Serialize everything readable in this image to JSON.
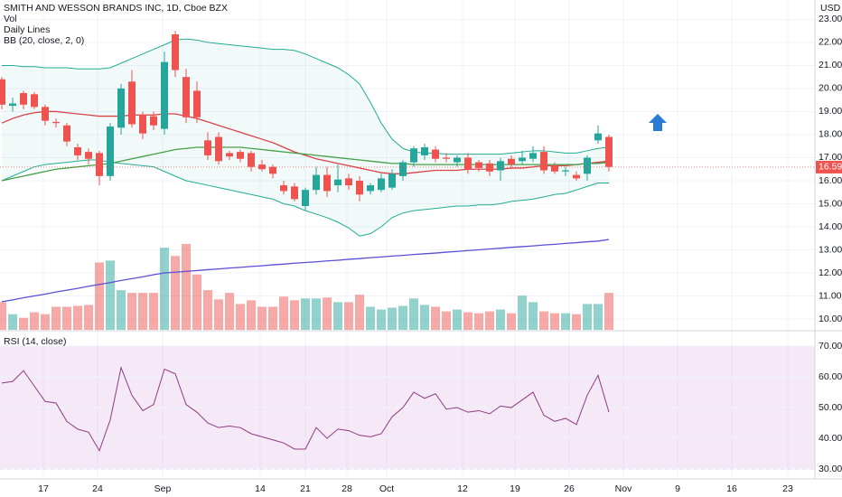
{
  "chart_data": {
    "type": "candlestick",
    "title": "SMITH AND WESSON BRANDS INC, 1D, Cboe BZX",
    "legend": [
      "Vol",
      "Daily Lines",
      "BB (20, close, 2, 0)"
    ],
    "currency": "USD",
    "up_color": "#26a69a",
    "down_color": "#ef5350",
    "open": [
      20.4,
      19.25,
      19.8,
      19.75,
      19.2,
      18.55,
      18.4,
      17.45,
      17.25,
      17.2,
      16.2,
      18.3,
      20.3,
      18.85,
      18.8,
      18.25,
      22.35,
      20.5,
      19.9,
      17.75,
      17.9,
      17.2,
      17.25,
      17.2,
      16.7,
      16.6,
      15.8,
      15.75,
      14.9,
      15.6,
      16.25,
      15.8,
      16.1,
      16.0,
      15.55,
      15.6,
      15.7,
      16.2,
      16.8,
      17.1,
      17.35,
      17.0,
      16.8,
      17.0,
      16.8,
      16.75,
      16.45,
      16.95,
      16.85,
      16.95,
      17.25,
      16.65,
      16.4,
      16.25,
      16.3,
      17.75,
      17.9
    ],
    "high": [
      20.5,
      19.6,
      19.9,
      19.85,
      19.3,
      18.7,
      18.5,
      17.6,
      17.4,
      17.3,
      18.5,
      20.2,
      20.8,
      19.0,
      19.0,
      21.6,
      22.5,
      20.85,
      20.3,
      18.1,
      18.1,
      17.3,
      17.35,
      17.3,
      16.9,
      16.7,
      16.0,
      15.9,
      15.7,
      16.6,
      16.6,
      16.7,
      16.3,
      16.2,
      15.9,
      16.3,
      16.5,
      16.9,
      17.5,
      17.6,
      17.5,
      17.2,
      17.1,
      17.2,
      16.9,
      16.9,
      17.0,
      17.1,
      17.3,
      17.5,
      17.5,
      16.8,
      16.6,
      16.4,
      17.1,
      18.4,
      18.0
    ],
    "low": [
      19.1,
      19.0,
      19.1,
      19.1,
      18.4,
      18.3,
      17.5,
      16.9,
      16.7,
      15.8,
      16.0,
      18.0,
      18.3,
      17.8,
      18.2,
      18.0,
      20.5,
      18.5,
      18.5,
      16.9,
      16.7,
      16.9,
      16.8,
      16.4,
      16.4,
      16.1,
      15.4,
      15.1,
      14.7,
      15.4,
      15.3,
      15.5,
      15.6,
      15.1,
      15.4,
      15.5,
      15.6,
      16.0,
      16.6,
      16.9,
      16.8,
      16.8,
      16.6,
      16.3,
      16.4,
      16.2,
      16.0,
      16.5,
      16.7,
      16.8,
      16.3,
      16.3,
      16.2,
      16.0,
      16.0,
      17.6,
      16.4
    ],
    "close": [
      19.3,
      19.35,
      19.3,
      19.2,
      18.6,
      18.5,
      17.7,
      17.1,
      16.95,
      16.2,
      18.35,
      20.0,
      18.45,
      18.05,
      18.4,
      21.15,
      20.8,
      18.75,
      18.75,
      17.1,
      16.85,
      17.05,
      16.95,
      16.6,
      16.5,
      16.3,
      15.55,
      15.2,
      15.6,
      16.25,
      15.55,
      16.05,
      15.8,
      15.4,
      15.8,
      16.1,
      16.3,
      16.8,
      17.4,
      17.45,
      16.95,
      16.95,
      17.0,
      16.5,
      16.55,
      16.4,
      16.85,
      16.7,
      17.0,
      17.2,
      16.45,
      16.4,
      16.45,
      16.1,
      17.0,
      18.05,
      16.6
    ],
    "last_price": 16.59,
    "ylim": [
      9.53,
      23.84
    ],
    "yticks": [
      {
        "value": 10,
        "label": "10.00"
      },
      {
        "value": 11,
        "label": "11.00"
      },
      {
        "value": 12,
        "label": "12.00"
      },
      {
        "value": 13,
        "label": "13.00"
      },
      {
        "value": 14,
        "label": "14.00"
      },
      {
        "value": 15,
        "label": "15.00"
      },
      {
        "value": 16,
        "label": "16.00"
      },
      {
        "value": 17,
        "label": "17.00"
      },
      {
        "value": 18,
        "label": "18.00"
      },
      {
        "value": 19,
        "label": "19.00"
      },
      {
        "value": 20,
        "label": "20.00"
      },
      {
        "value": 21,
        "label": "21.00"
      },
      {
        "value": 22,
        "label": "22.00"
      },
      {
        "value": 23,
        "label": "23.00"
      }
    ],
    "xtick_labels": [
      "17",
      "24",
      "Sep",
      "14",
      "21",
      "28",
      "Oct",
      "12",
      "19",
      "26",
      "Nov",
      "9",
      "16",
      "23"
    ],
    "bands": {
      "color": "#22ab94",
      "fill_opacity": 0.06,
      "upper": [
        21.0,
        21.0,
        20.95,
        20.95,
        20.9,
        20.9,
        20.9,
        20.85,
        20.85,
        20.85,
        20.9,
        21.1,
        21.3,
        21.5,
        21.7,
        21.9,
        22.1,
        22.15,
        22.1,
        22.0,
        21.95,
        21.9,
        21.85,
        21.8,
        21.75,
        21.7,
        21.7,
        21.65,
        21.5,
        21.3,
        21.1,
        20.9,
        20.6,
        20.2,
        19.4,
        18.5,
        17.8,
        17.4,
        17.25,
        17.2,
        17.2,
        17.15,
        17.15,
        17.15,
        17.15,
        17.15,
        17.15,
        17.2,
        17.25,
        17.3,
        17.3,
        17.25,
        17.2,
        17.2,
        17.3,
        17.4,
        17.45
      ],
      "lower": [
        16.0,
        16.2,
        16.4,
        16.6,
        16.7,
        16.75,
        16.8,
        16.85,
        16.9,
        16.9,
        16.8,
        16.75,
        16.7,
        16.65,
        16.6,
        16.4,
        16.2,
        16.0,
        15.9,
        15.8,
        15.7,
        15.6,
        15.5,
        15.4,
        15.3,
        15.2,
        15.0,
        14.9,
        14.7,
        14.55,
        14.4,
        14.2,
        13.95,
        13.6,
        13.7,
        14.0,
        14.4,
        14.6,
        14.7,
        14.75,
        14.8,
        14.85,
        14.9,
        14.9,
        14.95,
        14.95,
        15.0,
        15.1,
        15.15,
        15.2,
        15.3,
        15.4,
        15.45,
        15.6,
        15.75,
        15.9,
        15.9
      ]
    },
    "lines": [
      {
        "color": "#d9434a",
        "values": [
          18.5,
          18.7,
          18.85,
          18.95,
          19.0,
          19.0,
          18.95,
          18.9,
          18.85,
          18.8,
          18.8,
          18.8,
          18.85,
          18.85,
          18.85,
          18.9,
          18.9,
          18.8,
          18.7,
          18.55,
          18.4,
          18.25,
          18.1,
          17.95,
          17.8,
          17.65,
          17.45,
          17.25,
          17.1,
          16.95,
          16.85,
          16.75,
          16.65,
          16.55,
          16.45,
          16.35,
          16.3,
          16.3,
          16.35,
          16.4,
          16.45,
          16.45,
          16.45,
          16.5,
          16.5,
          16.5,
          16.5,
          16.55,
          16.55,
          16.6,
          16.65,
          16.65,
          16.65,
          16.7,
          16.75,
          16.8,
          16.85
        ]
      },
      {
        "color": "#43a047",
        "values": [
          16.0,
          16.1,
          16.2,
          16.3,
          16.4,
          16.5,
          16.55,
          16.6,
          16.65,
          16.7,
          16.75,
          16.85,
          16.95,
          17.05,
          17.15,
          17.25,
          17.35,
          17.4,
          17.45,
          17.45,
          17.45,
          17.45,
          17.45,
          17.4,
          17.35,
          17.3,
          17.25,
          17.2,
          17.15,
          17.1,
          17.05,
          17.0,
          16.95,
          16.9,
          16.85,
          16.8,
          16.75,
          16.75,
          16.7,
          16.7,
          16.7,
          16.7,
          16.7,
          16.7,
          16.7,
          16.7,
          16.7,
          16.7,
          16.7,
          16.7,
          16.7,
          16.7,
          16.7,
          16.7,
          16.75,
          16.75,
          16.8
        ]
      },
      {
        "color": "#5b4fd6",
        "values": [
          10.75,
          10.83,
          10.92,
          11.0,
          11.08,
          11.17,
          11.25,
          11.33,
          11.42,
          11.5,
          11.58,
          11.67,
          11.75,
          11.83,
          11.92,
          12.0,
          12.03,
          12.07,
          12.1,
          12.14,
          12.17,
          12.21,
          12.24,
          12.28,
          12.31,
          12.35,
          12.38,
          12.42,
          12.45,
          12.48,
          12.52,
          12.55,
          12.59,
          12.62,
          12.66,
          12.69,
          12.73,
          12.76,
          12.8,
          12.83,
          12.86,
          12.9,
          12.93,
          12.97,
          13.0,
          13.04,
          13.07,
          13.11,
          13.14,
          13.17,
          13.21,
          13.24,
          13.28,
          13.31,
          13.35,
          13.38,
          13.45
        ]
      }
    ],
    "volume": [
      30,
      17,
      13,
      19,
      17,
      25,
      25,
      26,
      27,
      73,
      75,
      43,
      40,
      40,
      40,
      89,
      80,
      93,
      60,
      43,
      33,
      40,
      28,
      32,
      25,
      25,
      36,
      32,
      34,
      34,
      35,
      30,
      30,
      38,
      25,
      22,
      24,
      26,
      34,
      27,
      25,
      20,
      22,
      19,
      18,
      20,
      22,
      18,
      37,
      30,
      20,
      18,
      18,
      17,
      28,
      28,
      40
    ],
    "rsi": {
      "label": "RSI (14, close)",
      "color": "#8e3a80",
      "band_color": "#9c27b0",
      "values": [
        58,
        58.5,
        62,
        57,
        52,
        51.5,
        45.5,
        43,
        42,
        36,
        46,
        63,
        54,
        49,
        51,
        62.5,
        61,
        51,
        48.5,
        45,
        43.5,
        44,
        43.5,
        41.5,
        40.5,
        39.5,
        38.5,
        36.5,
        36.5,
        43.5,
        40,
        43,
        42.5,
        41,
        40.5,
        41.5,
        47,
        50,
        55,
        53,
        54.5,
        49.5,
        50,
        48.5,
        49,
        48,
        50.5,
        50,
        52.5,
        55,
        47.5,
        45.5,
        46.5,
        44.5,
        54,
        60.5,
        48.5
      ],
      "ylim": [
        26.8,
        74.7
      ],
      "band": [
        30,
        70
      ],
      "yticks": [
        {
          "value": 30,
          "label": "30.00"
        },
        {
          "value": 40,
          "label": "40.00"
        },
        {
          "value": 50,
          "label": "50.00"
        },
        {
          "value": 60,
          "label": "60.00"
        },
        {
          "value": 70,
          "label": "70.00"
        }
      ]
    }
  }
}
